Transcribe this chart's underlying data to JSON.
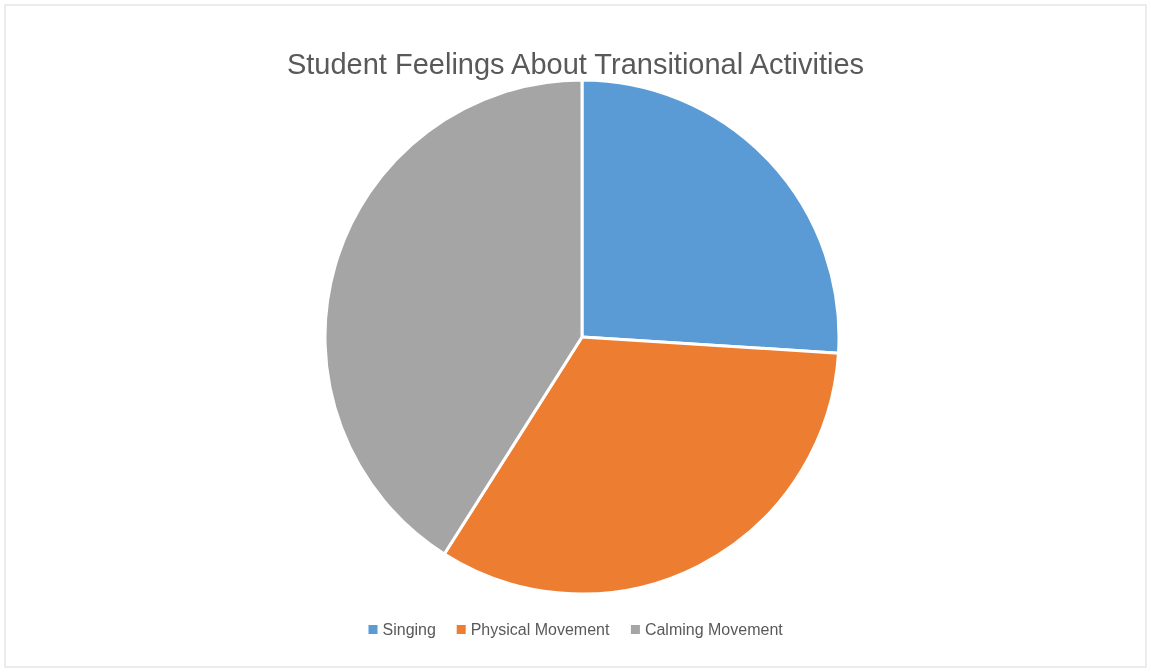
{
  "chart_data": {
    "type": "pie",
    "title": "Student Feelings About Transitional Activities",
    "categories": [
      "Singing",
      "Physical Movement",
      "Calming Movement"
    ],
    "values": [
      26,
      33,
      41
    ],
    "colors": [
      "#5b9bd5",
      "#ed7d31",
      "#a5a5a5"
    ],
    "legend": "bottom"
  }
}
